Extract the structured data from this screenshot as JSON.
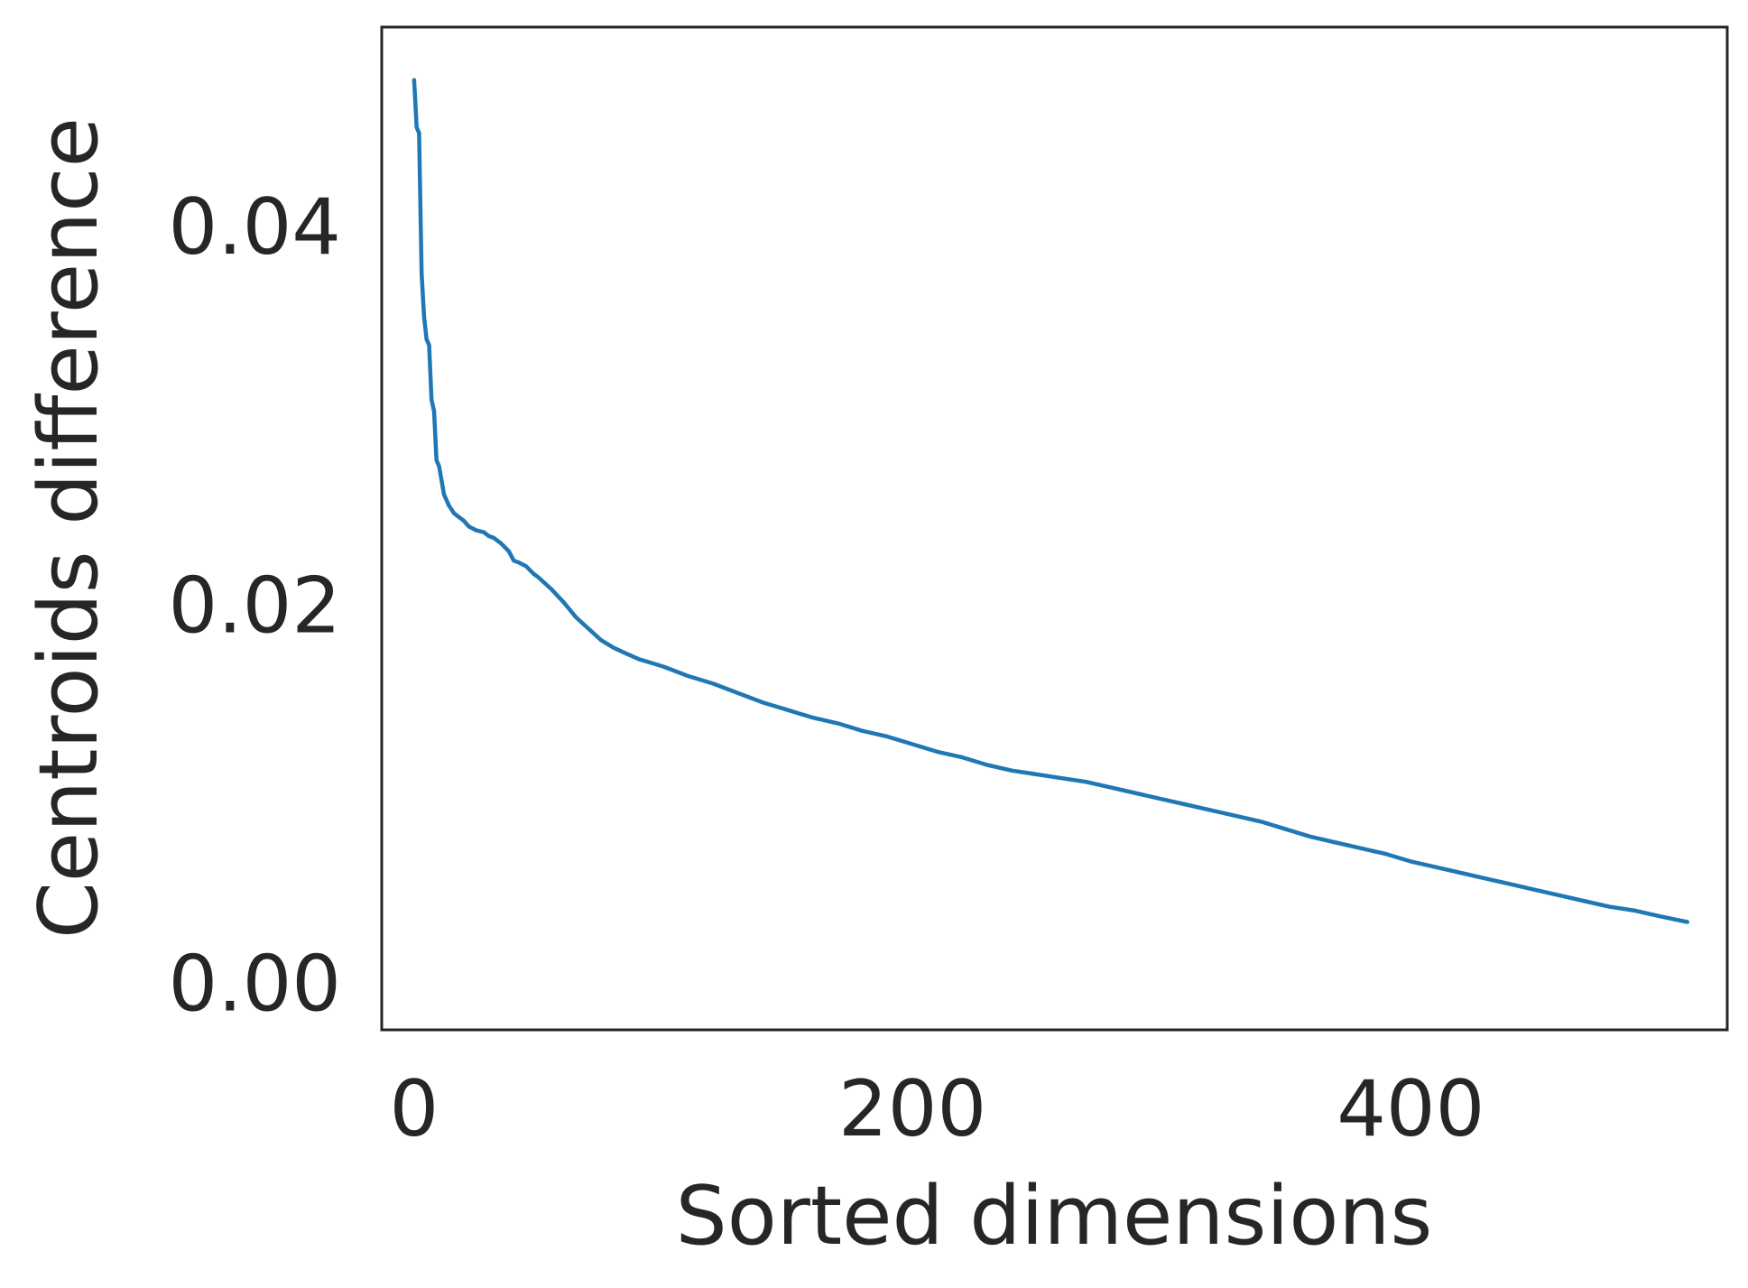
{
  "chart_data": {
    "type": "line",
    "title": "",
    "xlabel": "Sorted dimensions",
    "ylabel": "Centroids difference",
    "xlim": [
      -13,
      527
    ],
    "ylim": [
      -0.0025,
      0.0505
    ],
    "xticks": [
      0,
      200,
      400
    ],
    "xtick_labels": [
      "0",
      "200",
      "400"
    ],
    "yticks": [
      0.0,
      0.02,
      0.04
    ],
    "ytick_labels": [
      "0.00",
      "0.02",
      "0.04"
    ],
    "grid": false,
    "legend": "none",
    "series": [
      {
        "color": "#1f77b4",
        "x": [
          0,
          1,
          2,
          3,
          4,
          5,
          6,
          7,
          8,
          9,
          10,
          12,
          14,
          16,
          18,
          20,
          22,
          25,
          28,
          30,
          32,
          35,
          38,
          40,
          42,
          45,
          48,
          50,
          55,
          60,
          65,
          70,
          75,
          80,
          85,
          90,
          100,
          110,
          120,
          130,
          140,
          150,
          160,
          170,
          180,
          190,
          200,
          210,
          220,
          230,
          240,
          250,
          260,
          270,
          280,
          290,
          300,
          310,
          320,
          330,
          340,
          350,
          360,
          370,
          380,
          390,
          400,
          410,
          420,
          430,
          440,
          450,
          460,
          470,
          480,
          490,
          500,
          511
        ],
        "y": [
          0.0477,
          0.0452,
          0.0449,
          0.0375,
          0.0352,
          0.034,
          0.0337,
          0.0308,
          0.0302,
          0.0276,
          0.0273,
          0.0258,
          0.0252,
          0.0248,
          0.0246,
          0.0244,
          0.0241,
          0.0239,
          0.0238,
          0.0236,
          0.0235,
          0.0232,
          0.0228,
          0.0223,
          0.0222,
          0.022,
          0.0216,
          0.0214,
          0.0208,
          0.0201,
          0.0193,
          0.0187,
          0.0181,
          0.0177,
          0.0174,
          0.0171,
          0.0167,
          0.0162,
          0.0158,
          0.0153,
          0.0148,
          0.0144,
          0.014,
          0.0137,
          0.0133,
          0.013,
          0.0126,
          0.0122,
          0.0119,
          0.0115,
          0.0112,
          0.011,
          0.0108,
          0.0106,
          0.0103,
          0.01,
          0.0097,
          0.0094,
          0.0091,
          0.0088,
          0.0085,
          0.0081,
          0.0077,
          0.0074,
          0.0071,
          0.0068,
          0.0064,
          0.0061,
          0.0058,
          0.0055,
          0.0052,
          0.0049,
          0.0046,
          0.0043,
          0.004,
          0.0038,
          0.0035,
          0.0032
        ]
      }
    ]
  }
}
